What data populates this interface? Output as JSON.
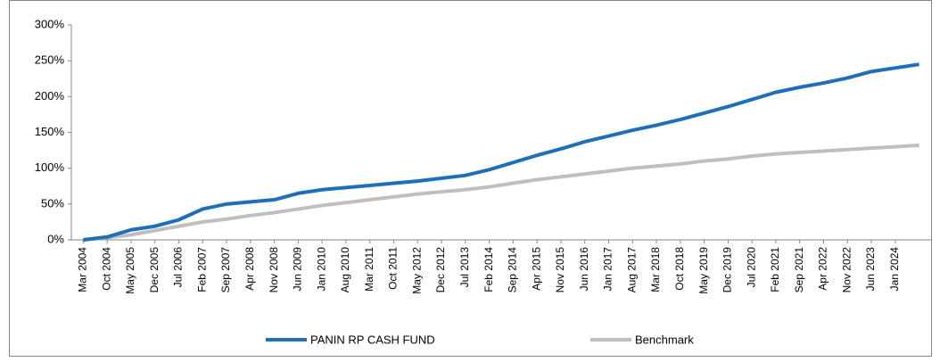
{
  "chart_data": {
    "type": "line",
    "categories": [
      "Mar 2004",
      "Oct 2004",
      "May 2005",
      "Dec 2005",
      "Jul 2006",
      "Feb 2007",
      "Sep 2007",
      "Apr 2008",
      "Nov 2008",
      "Jun 2009",
      "Jan 2010",
      "Aug 2010",
      "Mar 2011",
      "Oct 2011",
      "May 2012",
      "Dec 2012",
      "Jul 2013",
      "Feb 2014",
      "Sep 2014",
      "Apr 2015",
      "Nov 2015",
      "Jun 2016",
      "Jan 2017",
      "Aug 2017",
      "Mar 2018",
      "Oct 2018",
      "May 2019",
      "Dec 2019",
      "Jul 2020",
      "Feb 2021",
      "Sep 2021",
      "Apr 2022",
      "Nov 2022",
      "Jun 2023",
      "Jan 2024",
      null
    ],
    "series": [
      {
        "name": "PANIN RP CASH FUND",
        "color": "#1f6fb8",
        "values": [
          0,
          4,
          14,
          19,
          28,
          43,
          50,
          53,
          56,
          65,
          70,
          73,
          76,
          79,
          82,
          86,
          90,
          98,
          108,
          118,
          127,
          137,
          145,
          153,
          160,
          168,
          177,
          186,
          196,
          206,
          213,
          219,
          226,
          235,
          240,
          245
        ]
      },
      {
        "name": "Benchmark",
        "color": "#bfbfbf",
        "values": [
          0,
          3,
          7,
          13,
          19,
          25,
          29,
          34,
          38,
          43,
          48,
          52,
          56,
          60,
          64,
          67,
          70,
          74,
          79,
          84,
          88,
          92,
          96,
          100,
          103,
          106,
          110,
          113,
          117,
          120,
          122,
          124,
          126,
          128,
          130,
          132
        ]
      }
    ],
    "ylim": [
      0,
      300
    ],
    "yticks": [
      {
        "value": 0,
        "label": "0%"
      },
      {
        "value": 50,
        "label": "50%"
      },
      {
        "value": 100,
        "label": "100%"
      },
      {
        "value": 150,
        "label": "150%"
      },
      {
        "value": 200,
        "label": "200%"
      },
      {
        "value": 250,
        "label": "250%"
      },
      {
        "value": 300,
        "label": "300%"
      }
    ],
    "grid": false,
    "legend": "bottom"
  }
}
